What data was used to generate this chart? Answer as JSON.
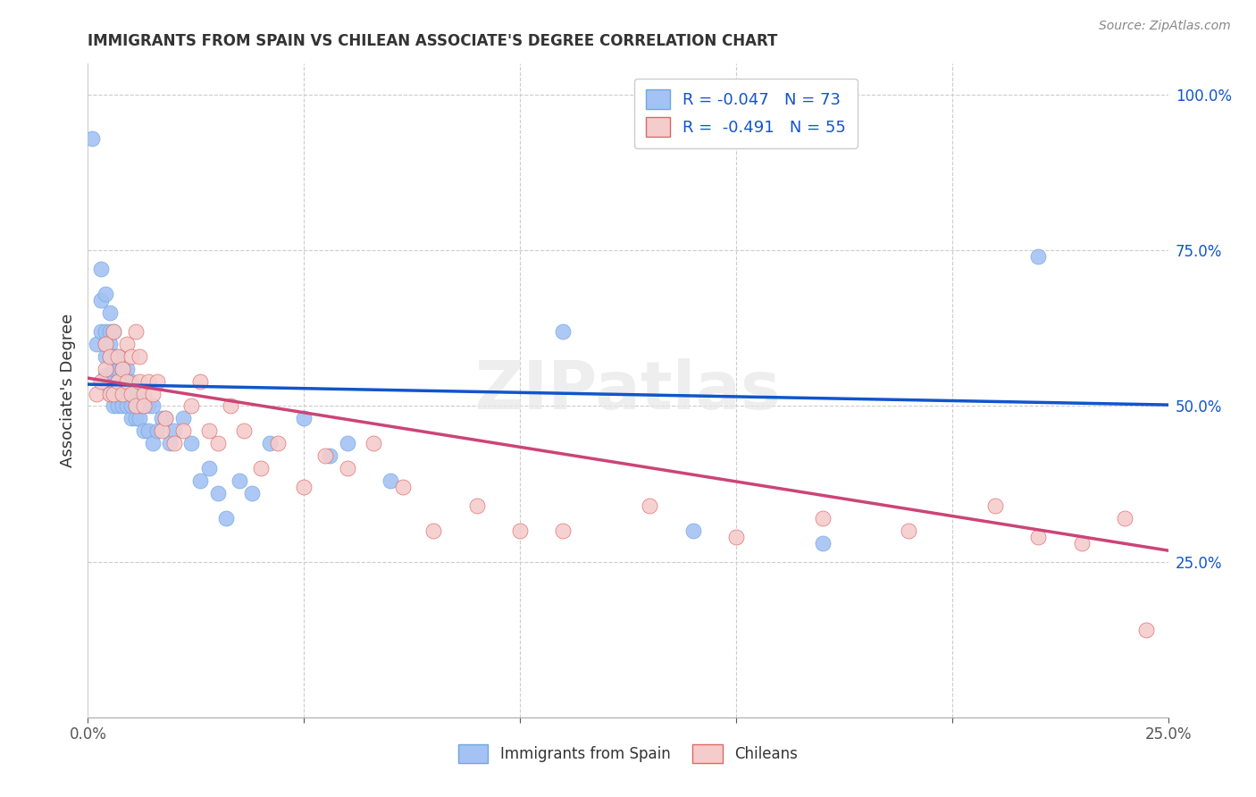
{
  "title": "IMMIGRANTS FROM SPAIN VS CHILEAN ASSOCIATE'S DEGREE CORRELATION CHART",
  "source": "Source: ZipAtlas.com",
  "ylabel": "Associate's Degree",
  "legend_blue_label": "R = -0.047   N = 73",
  "legend_pink_label": "R =  -0.491   N = 55",
  "legend_blue_series": "Immigrants from Spain",
  "legend_pink_series": "Chileans",
  "blue_color": "#a4c2f4",
  "pink_color": "#f4cccc",
  "blue_dot_edge": "#6fa8dc",
  "pink_dot_edge": "#e06666",
  "blue_line_color": "#1155cc",
  "pink_line_color": "#cc4477",
  "watermark": "ZIPatlas",
  "blue_scatter_x": [
    0.001,
    0.002,
    0.003,
    0.003,
    0.003,
    0.004,
    0.004,
    0.004,
    0.004,
    0.004,
    0.005,
    0.005,
    0.005,
    0.005,
    0.005,
    0.005,
    0.006,
    0.006,
    0.006,
    0.006,
    0.006,
    0.006,
    0.007,
    0.007,
    0.007,
    0.007,
    0.007,
    0.008,
    0.008,
    0.008,
    0.008,
    0.009,
    0.009,
    0.009,
    0.009,
    0.01,
    0.01,
    0.01,
    0.01,
    0.011,
    0.011,
    0.011,
    0.012,
    0.012,
    0.012,
    0.013,
    0.013,
    0.014,
    0.014,
    0.015,
    0.015,
    0.016,
    0.017,
    0.018,
    0.019,
    0.02,
    0.022,
    0.024,
    0.026,
    0.028,
    0.03,
    0.032,
    0.035,
    0.038,
    0.042,
    0.05,
    0.056,
    0.06,
    0.07,
    0.11,
    0.14,
    0.17,
    0.22
  ],
  "blue_scatter_y": [
    0.93,
    0.6,
    0.62,
    0.67,
    0.72,
    0.55,
    0.58,
    0.6,
    0.62,
    0.68,
    0.52,
    0.55,
    0.58,
    0.6,
    0.62,
    0.65,
    0.5,
    0.52,
    0.54,
    0.56,
    0.58,
    0.62,
    0.5,
    0.52,
    0.54,
    0.56,
    0.58,
    0.5,
    0.52,
    0.54,
    0.56,
    0.5,
    0.52,
    0.54,
    0.56,
    0.48,
    0.5,
    0.52,
    0.54,
    0.48,
    0.5,
    0.52,
    0.48,
    0.5,
    0.52,
    0.46,
    0.5,
    0.46,
    0.5,
    0.44,
    0.5,
    0.46,
    0.48,
    0.48,
    0.44,
    0.46,
    0.48,
    0.44,
    0.38,
    0.4,
    0.36,
    0.32,
    0.38,
    0.36,
    0.44,
    0.48,
    0.42,
    0.44,
    0.38,
    0.62,
    0.3,
    0.28,
    0.74
  ],
  "pink_scatter_x": [
    0.002,
    0.003,
    0.004,
    0.004,
    0.005,
    0.005,
    0.006,
    0.006,
    0.007,
    0.007,
    0.008,
    0.008,
    0.009,
    0.009,
    0.01,
    0.01,
    0.011,
    0.011,
    0.012,
    0.012,
    0.013,
    0.013,
    0.014,
    0.015,
    0.016,
    0.017,
    0.018,
    0.02,
    0.022,
    0.024,
    0.026,
    0.028,
    0.03,
    0.033,
    0.036,
    0.04,
    0.044,
    0.05,
    0.055,
    0.06,
    0.066,
    0.073,
    0.08,
    0.09,
    0.1,
    0.11,
    0.13,
    0.15,
    0.17,
    0.19,
    0.21,
    0.22,
    0.23,
    0.24,
    0.245
  ],
  "pink_scatter_y": [
    0.52,
    0.54,
    0.56,
    0.6,
    0.52,
    0.58,
    0.52,
    0.62,
    0.54,
    0.58,
    0.52,
    0.56,
    0.6,
    0.54,
    0.52,
    0.58,
    0.62,
    0.5,
    0.54,
    0.58,
    0.52,
    0.5,
    0.54,
    0.52,
    0.54,
    0.46,
    0.48,
    0.44,
    0.46,
    0.5,
    0.54,
    0.46,
    0.44,
    0.5,
    0.46,
    0.4,
    0.44,
    0.37,
    0.42,
    0.4,
    0.44,
    0.37,
    0.3,
    0.34,
    0.3,
    0.3,
    0.34,
    0.29,
    0.32,
    0.3,
    0.34,
    0.29,
    0.28,
    0.32,
    0.14
  ],
  "xlim": [
    0.0,
    0.25
  ],
  "ylim": [
    0.0,
    1.05
  ],
  "ytick_vals": [
    0.25,
    0.5,
    0.75,
    1.0
  ],
  "ytick_labels": [
    "25.0%",
    "50.0%",
    "75.0%",
    "100.0%"
  ],
  "xtick_vals": [
    0.0,
    0.05,
    0.1,
    0.15,
    0.2,
    0.25
  ],
  "xtick_labels": [
    "0.0%",
    "",
    "",
    "",
    "",
    "25.0%"
  ],
  "blue_line_x": [
    0.0,
    0.25
  ],
  "blue_line_y": [
    0.535,
    0.502
  ],
  "pink_line_x": [
    0.0,
    0.25
  ],
  "pink_line_y": [
    0.545,
    0.268
  ]
}
